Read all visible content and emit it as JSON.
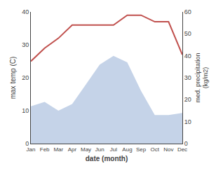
{
  "chart_data": {
    "type": "line",
    "categories": [
      "Jan",
      "Feb",
      "Mar",
      "Apr",
      "May",
      "Jun",
      "Jul",
      "Aug",
      "Sep",
      "Oct",
      "Nov",
      "Dec"
    ],
    "xlabel": "date (month)",
    "ylabel": "max temp (C)",
    "y2label": "med. precipitation\n(kg/m2)",
    "ylim": [
      0,
      40
    ],
    "yticks": [
      0,
      10,
      20,
      30,
      40
    ],
    "y2lim": [
      0,
      60
    ],
    "y2ticks": [
      0,
      10,
      20,
      30,
      40,
      50,
      60
    ],
    "grid": false,
    "series": [
      {
        "type": "line",
        "color": "#c0504d",
        "values": [
          25,
          29,
          32,
          36,
          36,
          36,
          36,
          39,
          39,
          37,
          37,
          27
        ]
      },
      {
        "type": "area",
        "color": "#c5d3e8",
        "axis": "y2",
        "values": [
          17,
          19,
          15,
          18,
          27,
          36,
          40,
          37,
          24,
          13,
          13,
          14
        ]
      }
    ]
  }
}
